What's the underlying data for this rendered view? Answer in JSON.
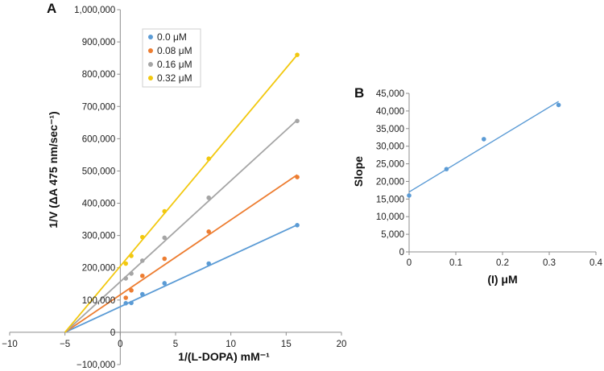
{
  "chart_data": [
    {
      "panel": "A",
      "type": "scatter",
      "ylabel": "1/V (ΔA 475 nm/sec⁻¹)",
      "xlabel": "1/(L-DOPA) mM⁻¹",
      "xlim": [
        -10,
        20
      ],
      "ylim": [
        -100000,
        1000000
      ],
      "x_ticks": [
        "−10",
        "−5",
        "0",
        "5",
        "10",
        "15",
        "20"
      ],
      "y_ticks": [
        "−100,000",
        "0",
        "100,000",
        "200,000",
        "300,000",
        "400,000",
        "500,000",
        "600,000",
        "700,000",
        "800,000",
        "900,000",
        "1,000,000"
      ],
      "legend": {
        "position": "top-left",
        "entries": [
          "0.0 μM",
          "0.08 μM",
          "0.16 μM",
          "0.32 μM"
        ]
      },
      "series": [
        {
          "name": "0.0 μM",
          "color": "#5b9bd5",
          "x": [
            0.5,
            1,
            2,
            4,
            8,
            16
          ],
          "y": [
            90000,
            91000,
            118000,
            152000,
            213000,
            332000
          ],
          "fit": {
            "x": [
              -5,
              16
            ],
            "y": [
              0,
              333000
            ]
          }
        },
        {
          "name": "0.08 μM",
          "color": "#ed7d31",
          "x": [
            0.5,
            1,
            2,
            4,
            8,
            16
          ],
          "y": [
            107000,
            130000,
            175000,
            228000,
            312000,
            481000
          ],
          "fit": {
            "x": [
              -5,
              16
            ],
            "y": [
              0,
              488000
            ]
          }
        },
        {
          "name": "0.16 μM",
          "color": "#a5a5a5",
          "x": [
            0.5,
            1,
            2,
            4,
            8,
            16
          ],
          "y": [
            167000,
            182000,
            222000,
            293000,
            417000,
            655000
          ],
          "fit": {
            "x": [
              -5,
              16
            ],
            "y": [
              0,
              658000
            ]
          }
        },
        {
          "name": "0.32 μM",
          "color": "#f2c80f",
          "x": [
            0.5,
            1,
            2,
            4,
            8,
            16
          ],
          "y": [
            213000,
            237000,
            295000,
            375000,
            538000,
            860000
          ],
          "fit": {
            "x": [
              -5,
              16
            ],
            "y": [
              0,
              860000
            ]
          }
        }
      ]
    },
    {
      "panel": "B",
      "type": "scatter",
      "ylabel": "Slope",
      "xlabel": "(I) μM",
      "xlim": [
        0,
        0.4
      ],
      "ylim": [
        0,
        45000
      ],
      "x_ticks": [
        "0",
        "0.1",
        "0.2",
        "0.3",
        "0.4"
      ],
      "y_ticks": [
        "0",
        "5,000",
        "10,000",
        "15,000",
        "20,000",
        "25,000",
        "30,000",
        "35,000",
        "40,000",
        "45,000"
      ],
      "series": [
        {
          "name": "Slope",
          "color": "#5b9bd5",
          "x": [
            0,
            0.08,
            0.16,
            0.32
          ],
          "y": [
            16000,
            23500,
            32000,
            41700
          ],
          "fit": {
            "x": [
              0,
              0.32
            ],
            "y": [
              17000,
              42700
            ]
          }
        }
      ]
    }
  ]
}
